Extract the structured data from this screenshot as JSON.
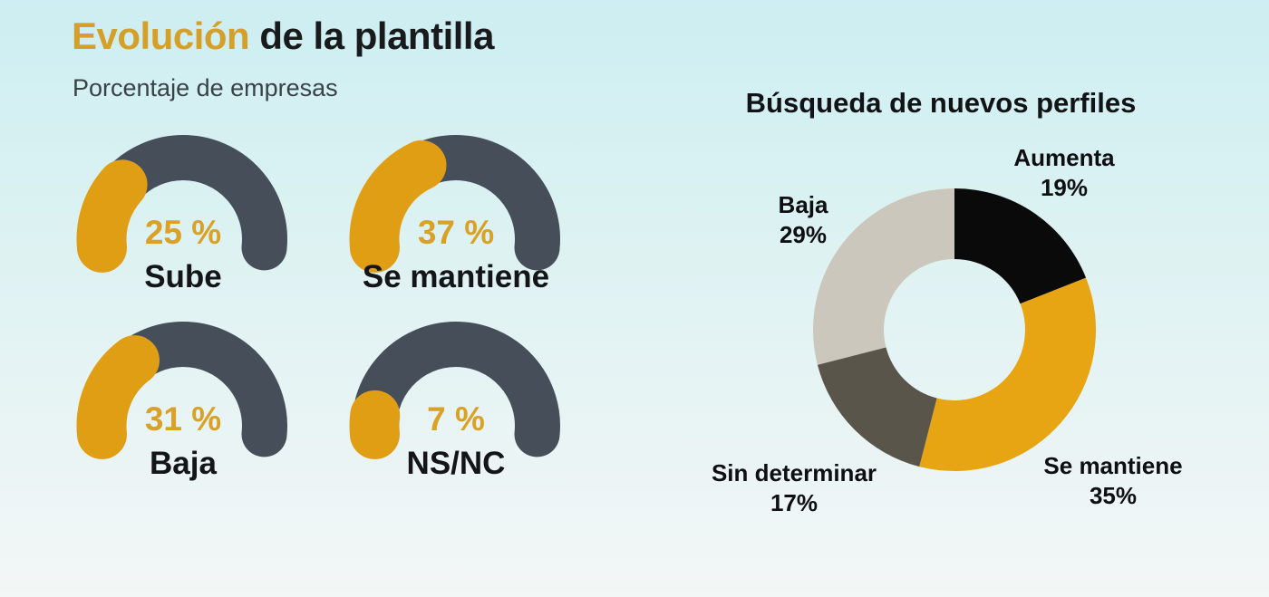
{
  "header": {
    "title_accent": "Evolución",
    "title_rest": " de la plantilla",
    "subtitle": "Porcentaje de empresas"
  },
  "colors": {
    "accent_orange": "#d5a02a",
    "gauge_track": "#454e59",
    "gauge_value": "#df9e14",
    "gauge_value_text": "#d9a227",
    "text_dark": "#141519",
    "background_top": "#cdeef2",
    "background_bottom": "#f3f7f6"
  },
  "chart_data": [
    {
      "type": "bar",
      "subtype": "semicircle-gauge-set",
      "title": "Evolución de la plantilla",
      "subtitle": "Porcentaje de empresas",
      "unit": "%",
      "max": 100,
      "track_color": "#454e59",
      "value_color": "#df9e14",
      "gauges": [
        {
          "label": "Sube",
          "value": 25,
          "display": "25 %"
        },
        {
          "label": "Se mantiene",
          "value": 37,
          "display": "37 %"
        },
        {
          "label": "Baja",
          "value": 31,
          "display": "31 %"
        },
        {
          "label": "NS/NC",
          "value": 7,
          "display": "7 %"
        }
      ]
    },
    {
      "type": "pie",
      "subtype": "donut",
      "title": "Búsqueda de nuevos perfiles",
      "start_angle_deg": 0,
      "direction": "clockwise",
      "inner_radius_ratio": 0.5,
      "legend_position": "around",
      "segments": [
        {
          "label": "Aumenta",
          "value": 19,
          "display": "19%",
          "color": "#0a0a0b"
        },
        {
          "label": "Se mantiene",
          "value": 35,
          "display": "35%",
          "color": "#e7a413"
        },
        {
          "label": "Sin determinar",
          "value": 17,
          "display": "17%",
          "color": "#59554b"
        },
        {
          "label": "Baja",
          "value": 29,
          "display": "29%",
          "color": "#ccc7bc"
        }
      ]
    }
  ]
}
